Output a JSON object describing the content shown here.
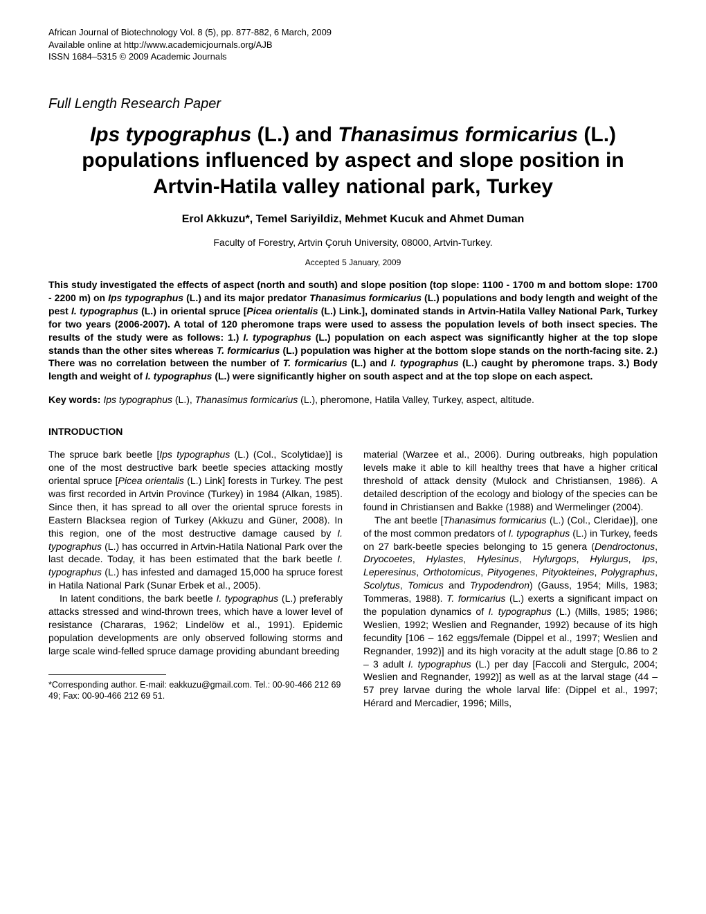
{
  "header": {
    "line1": "African Journal of Biotechnology Vol. 8 (5), pp. 877-882, 6 March, 2009",
    "line2": "Available online at http://www.academicjournals.org/AJB",
    "line3": "ISSN 1684–5315 © 2009 Academic Journals"
  },
  "paper_type": "Full Length Research Paper",
  "title": {
    "part1": "Ips typographus",
    "part2": " (L.) and ",
    "part3": "Thanasimus formicarius",
    "part4": " (L.) populations influenced by aspect and slope position in Artvin-Hatila valley national park, Turkey"
  },
  "authors": "Erol Akkuzu*, Temel Sariyildiz, Mehmet Kucuk and Ahmet Duman",
  "affiliation": "Faculty of Forestry, Artvin Çoruh University, 08000, Artvin-Turkey.",
  "accepted": "Accepted 5 January, 2009",
  "abstract": {
    "p1": "This study investigated the effects of aspect (north and south) and slope position (top slope: 1100 - 1700 m and bottom slope: 1700 - 2200 m) on ",
    "p2": "Ips typographus",
    "p3": " (L.) and its major predator ",
    "p4": "Thanasimus formicarius",
    "p5": " (L.) populations and body length and weight of the pest ",
    "p6": "I. typographus",
    "p7": " (L.) in oriental spruce [",
    "p8": "Picea orientalis",
    "p9": " (L.) Link.], dominated stands in Artvin-Hatila Valley National Park, Turkey for two years (2006-2007). A total of 120 pheromone traps were used to assess the population levels of both insect species. The results of the study were as follows: 1.) ",
    "p10": "I. typographus",
    "p11": " (L.) population on each aspect was significantly higher at the top slope stands than the other sites whereas ",
    "p12": "T. formicarius",
    "p13": " (L.) population was higher at the bottom slope stands on the north-facing site. 2.) There was no correlation between the number of ",
    "p14": "T. formicarius",
    "p15": " (L.) and ",
    "p16": "I. typographus",
    "p17": " (L.) caught by pheromone traps. 3.) Body length and weight of ",
    "p18": "I. typographus",
    "p19": " (L.) were significantly higher on south aspect and at the top slope on each aspect."
  },
  "keywords": {
    "label": "Key words:",
    "k1": " Ips typographus",
    "k2": " (L.), ",
    "k3": "Thanasimus formicarius",
    "k4": " (L.), pheromone, Hatila Valley, Turkey, aspect, altitude."
  },
  "section_heading": "INTRODUCTION",
  "col1": {
    "p1a": "The spruce bark beetle [",
    "p1b": "Ips typographus",
    "p1c": " (L.) (Col., Scolytidae)] is one of the most destructive bark beetle species attacking mostly oriental spruce [",
    "p1d": "Picea orientalis",
    "p1e": " (L.) Link] forests in Turkey. The pest was first recorded in Artvin Province (Turkey) in 1984 (Alkan, 1985). Since then, it has spread to all over the oriental spruce forests in Eastern Blacksea region of Turkey (Akkuzu and Güner, 2008). In this region, one of the most destructive damage caused by ",
    "p1f": "I. typographus",
    "p1g": " (L.) has occurred in Artvin-Hatila National Park over the last decade. Today, it has been estimated that the bark beetle ",
    "p1h": "I. typographus",
    "p1i": " (L.) has infested and damaged 15,000 ha spruce forest in Hatila National Park (Sunar Erbek et al., 2005).",
    "p2a": "In latent conditions, the bark beetle ",
    "p2b": "I. typographus",
    "p2c": " (L.) preferably attacks stressed and wind-thrown trees, which have a lower level of resistance (Chararas, 1962; Lindelöw et al., 1991). Epidemic population developments are only observed following storms and large scale wind-felled spruce damage providing abundant breeding"
  },
  "col2": {
    "p1": "material (Warzee et al., 2006). During outbreaks, high population levels make it able to kill healthy trees that have a higher critical threshold of attack density (Mulock and Christiansen, 1986). A detailed description of the ecology and biology of the species can be found in Christiansen and Bakke (1988) and Wermelinger (2004).",
    "p2a": "The ant beetle [",
    "p2b": "Thanasimus formicarius",
    "p2c": " (L.) (Col., Cleridae)], one of the most common predators of ",
    "p2d": "I. typographus",
    "p2e": " (L.) in Turkey, feeds on 27 bark-beetle species belonging to 15 genera (",
    "p2f": "Dendroctonus",
    "p2g": ", ",
    "p2h": "Dryocoetes",
    "p2i": ", ",
    "p2j": "Hylastes",
    "p2k": ", ",
    "p2l": "Hylesinus",
    "p2m": ", ",
    "p2n": "Hylurgops",
    "p2o": ", ",
    "p2p": "Hylurgus",
    "p2q": ", ",
    "p2r": "Ips",
    "p2s": ", ",
    "p2t": "Leperesinus",
    "p2u": ", ",
    "p2v": "Orthotomicus",
    "p2w": ", ",
    "p2x": "Pityogenes",
    "p2y": ", ",
    "p2z": "Pityokteines",
    "p3a": ", ",
    "p3b": "Polygraphus",
    "p3c": ", ",
    "p3d": "Scolytus",
    "p3e": ", ",
    "p3f": "Tomicus",
    "p3g": " and ",
    "p3h": "Trypodendron",
    "p3i": ") (Gauss, 1954; Mills, 1983; Tommeras, 1988). ",
    "p3j": "T. formicarius",
    "p3k": " (L.) exerts a significant impact on the population dynamics of ",
    "p3l": "I. typographus",
    "p3m": " (L.) (Mills, 1985; 1986; Weslien, 1992; Weslien and Regnander, 1992) because of its high fecundity [106 – 162 eggs/female (Dippel et al., 1997; Weslien and Regnander, 1992)] and its high voracity at the adult stage [0.86 to 2 – 3 adult ",
    "p3n": "I. typographus",
    "p3o": " (L.) per day [Faccoli and Stergulc, 2004; Weslien and Regnander, 1992)] as well as at the larval stage (44 – 57 prey larvae during the whole larval life: (Dippel et al., 1997; Hérard  and  Mercadier,  1996;  Mills,"
  },
  "footnote": "*Corresponding author. E-mail: eakkuzu@gmail.com. Tel.: 00-90-466 212 69 49; Fax: 00-90-466 212 69 51."
}
